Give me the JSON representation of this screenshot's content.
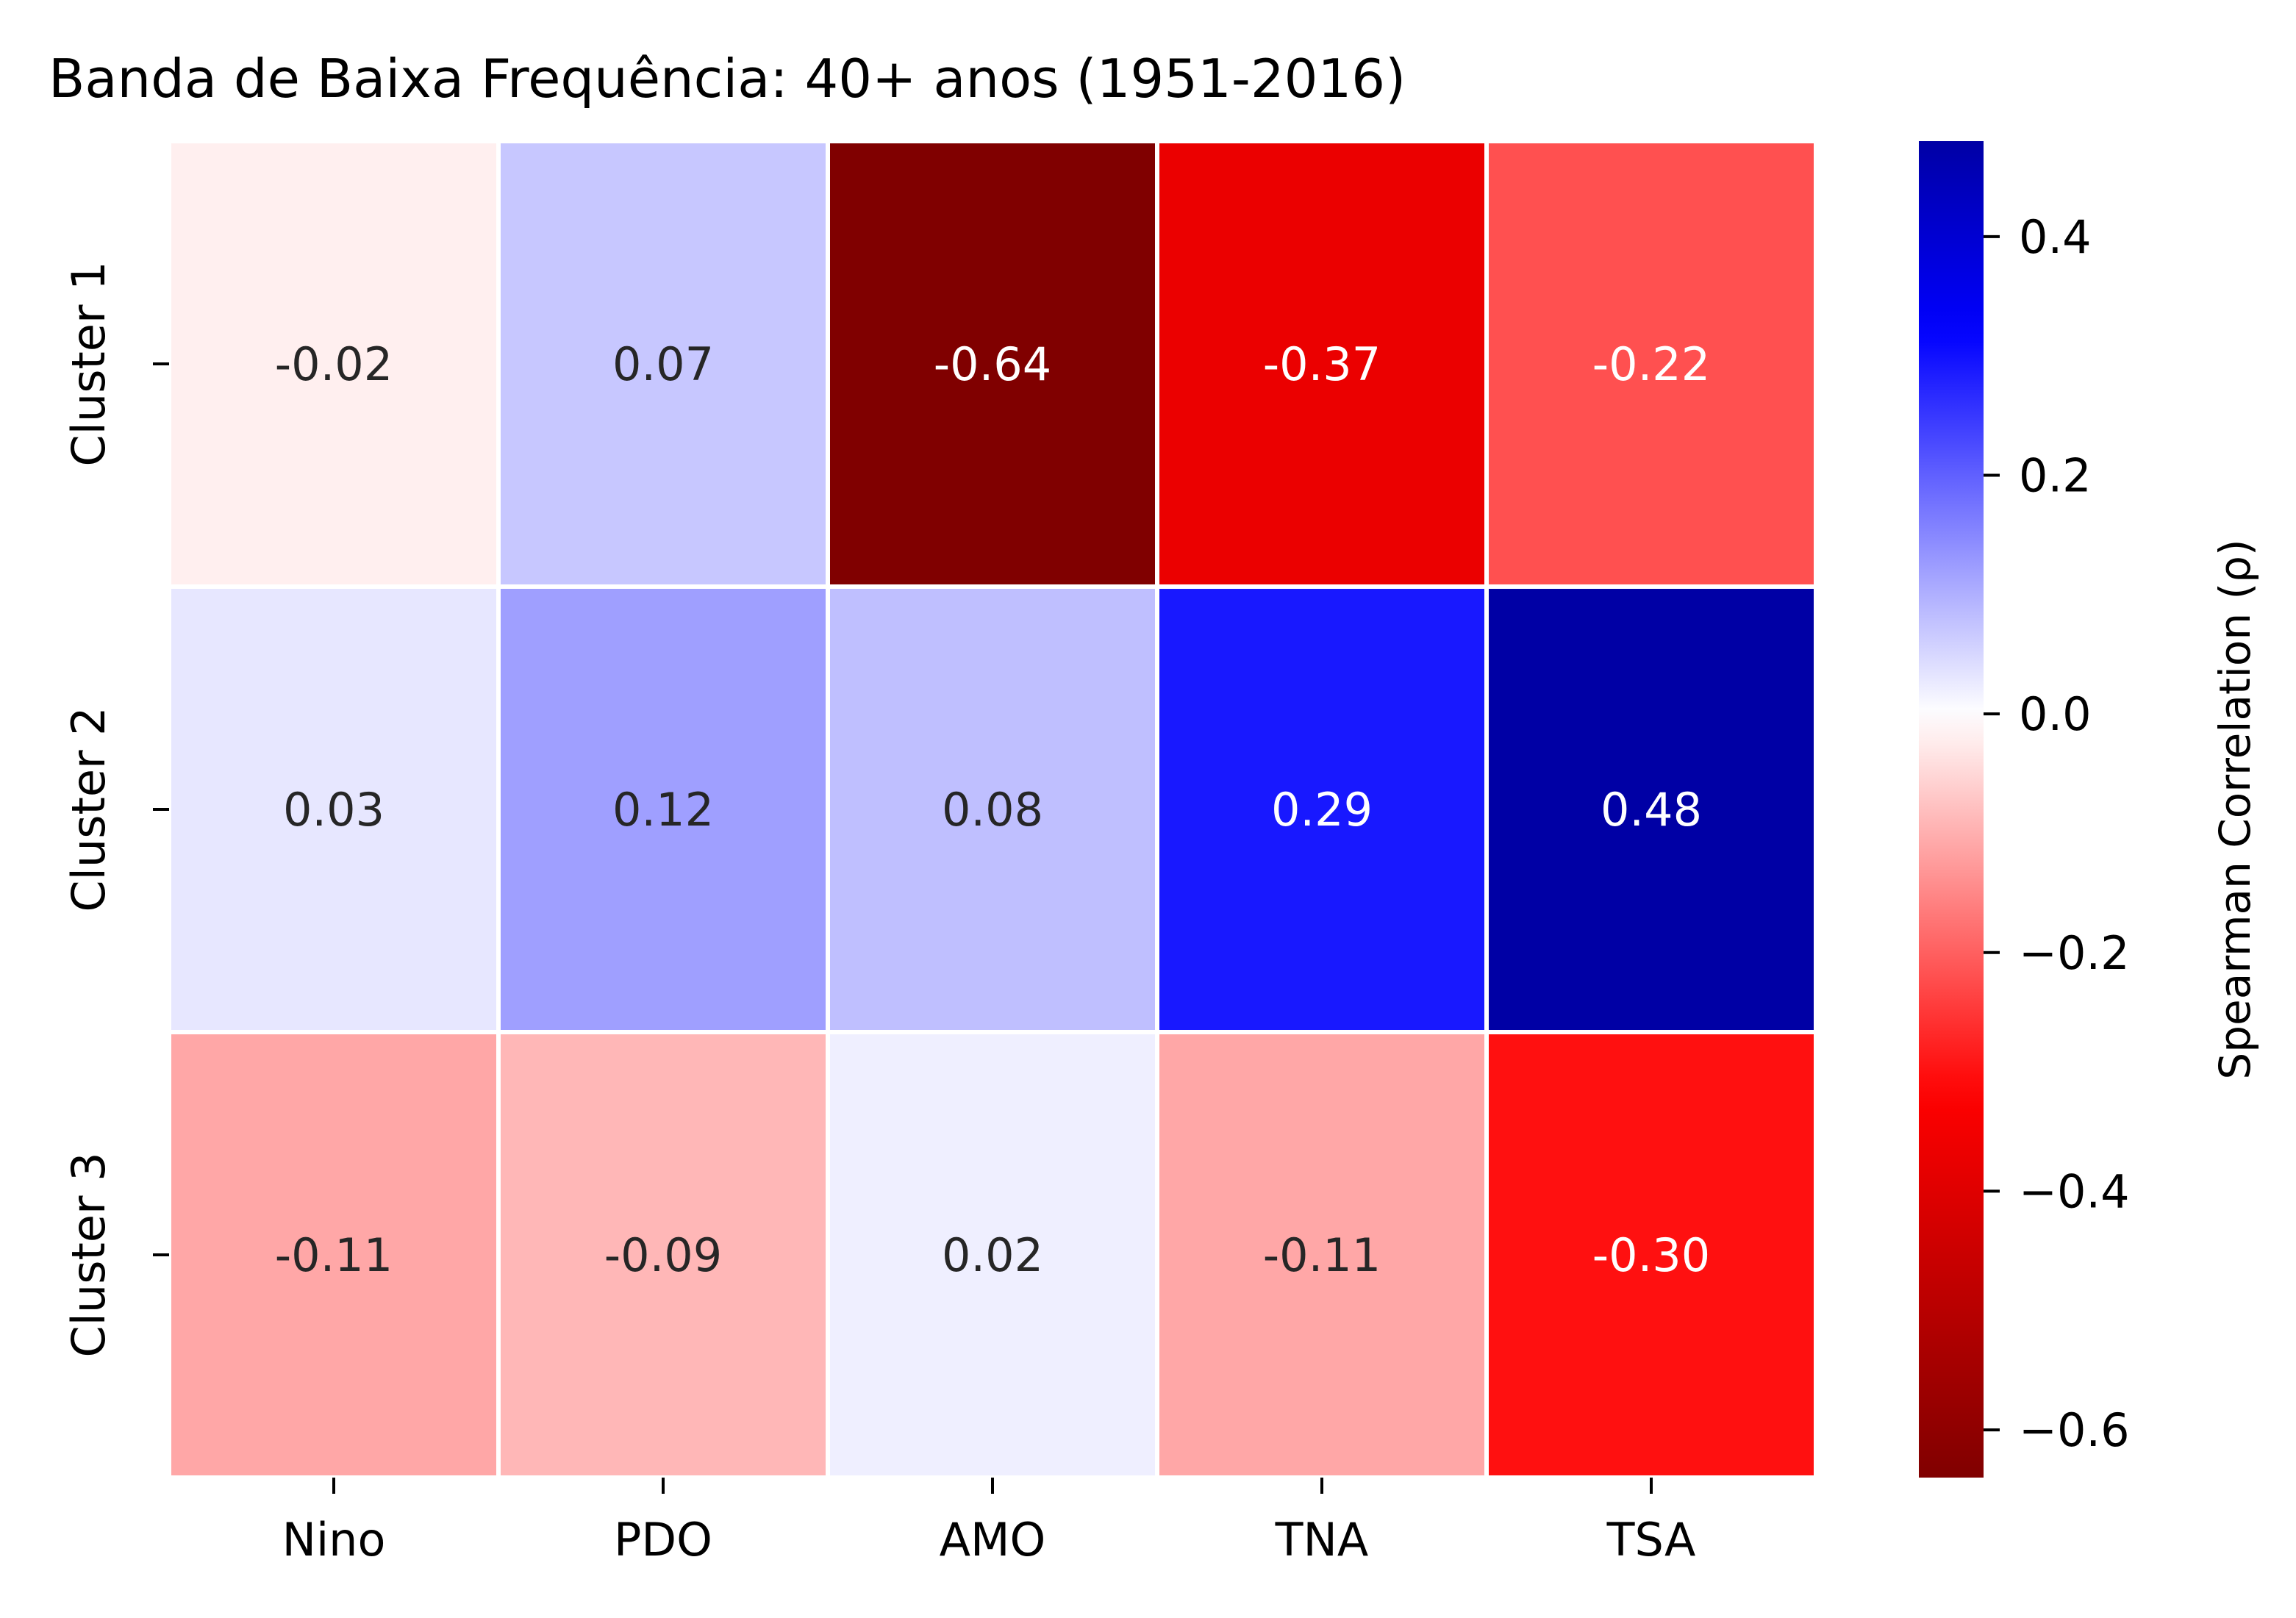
{
  "chart_data": {
    "type": "heatmap",
    "title": "Banda de Baixa Frequência: 40+ anos (1951-2016)",
    "columns": [
      "Nino",
      "PDO",
      "AMO",
      "TNA",
      "TSA"
    ],
    "rows": [
      "Cluster 1",
      "Cluster 2",
      "Cluster 3"
    ],
    "values": [
      [
        -0.02,
        0.07,
        -0.64,
        -0.37,
        -0.22
      ],
      [
        0.03,
        0.12,
        0.08,
        0.29,
        0.48
      ],
      [
        -0.11,
        -0.09,
        0.02,
        -0.11,
        -0.3
      ]
    ],
    "labels": [
      [
        "-0.02",
        "0.07",
        "-0.64",
        "-0.37",
        "-0.22"
      ],
      [
        "0.03",
        "0.12",
        "0.08",
        "0.29",
        "0.48"
      ],
      [
        "-0.11",
        "-0.09",
        "0.02",
        "-0.11",
        "-0.30"
      ]
    ],
    "colormap": "seismic_r",
    "vmin": -0.64,
    "vmax": 0.48,
    "colorbar": {
      "label": "Spearman Correlation (ρ)",
      "ticks": [
        -0.6,
        -0.4,
        -0.2,
        0.0,
        0.2,
        0.4
      ],
      "tick_labels": [
        "−0.6",
        "−0.4",
        "−0.2",
        "0.0",
        "0.2",
        "0.4"
      ]
    }
  }
}
